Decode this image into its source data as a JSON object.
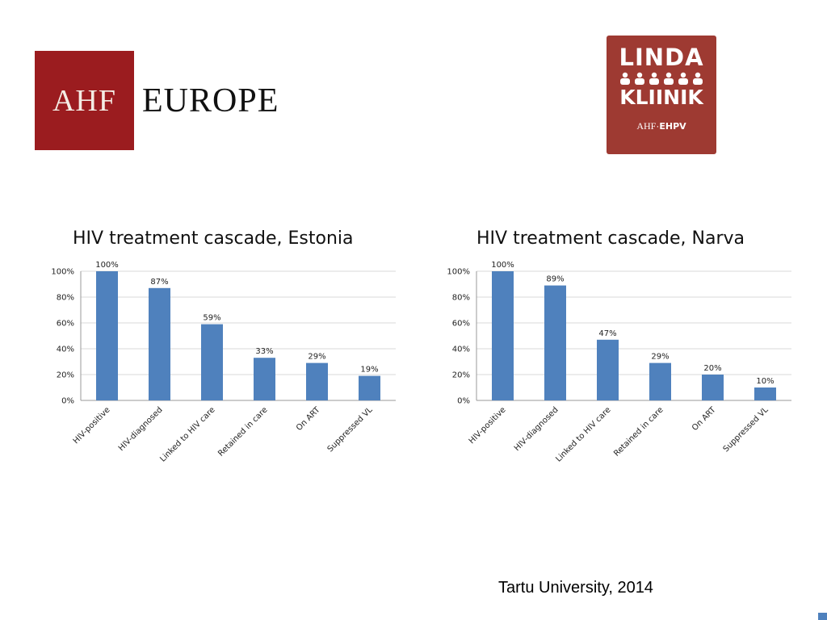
{
  "logos": {
    "ahf": {
      "box_text": "AHF",
      "word": "EUROPE",
      "color": "#9b1c1f"
    },
    "linda": {
      "line1": "LINDA",
      "line2": "KLIINIK",
      "sub_a": "AHF",
      "sub_sep": "·",
      "sub_b": "EHPV",
      "color": "#9e3a32"
    }
  },
  "footer": {
    "text": "Tartu University, 2014"
  },
  "colors": {
    "bar": "#4f81bd",
    "grid": "#d9d9d9"
  },
  "chart_data": [
    {
      "type": "bar",
      "title": "HIV treatment cascade, Estonia",
      "categories": [
        "HIV-positive",
        "HIV-diagnosed",
        "Linked to HIV care",
        "Retained in care",
        "On ART",
        "Suppressed VL"
      ],
      "values": [
        100,
        87,
        59,
        33,
        29,
        19
      ],
      "data_labels": [
        "100%",
        "87%",
        "59%",
        "33%",
        "29%",
        "19%"
      ],
      "ylim": [
        0,
        100
      ],
      "yticks": [
        "0%",
        "20%",
        "40%",
        "60%",
        "80%",
        "100%"
      ],
      "grid": true,
      "legend": "none"
    },
    {
      "type": "bar",
      "title": "HIV treatment cascade, Narva",
      "categories": [
        "HIV-positive",
        "HIV-diagnosed",
        "Linked to HIV care",
        "Retained in care",
        "On ART",
        "Suppressed VL"
      ],
      "values": [
        100,
        89,
        47,
        29,
        20,
        10
      ],
      "data_labels": [
        "100%",
        "89%",
        "47%",
        "29%",
        "20%",
        "10%"
      ],
      "ylim": [
        0,
        100
      ],
      "yticks": [
        "0%",
        "20%",
        "40%",
        "60%",
        "80%",
        "100%"
      ],
      "grid": true,
      "legend": "none"
    }
  ]
}
